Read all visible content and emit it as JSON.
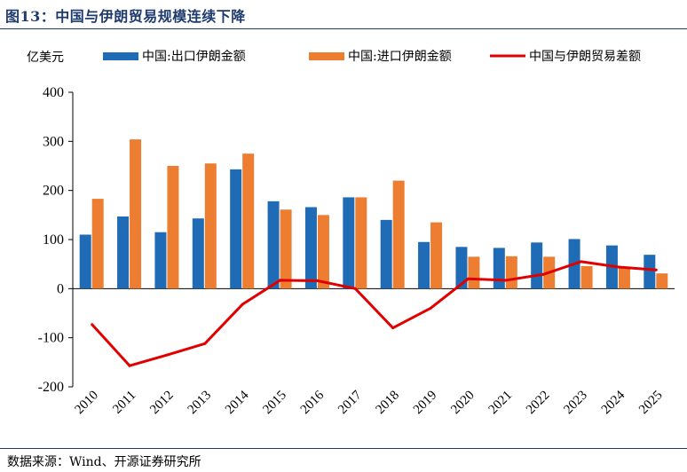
{
  "header": {
    "title": "图13：中国与伊朗贸易规模连续下降"
  },
  "footer": {
    "source": "数据来源：Wind、开源证券研究所"
  },
  "chart_data": {
    "type": "bar",
    "unit": "亿美元",
    "categories": [
      "2010",
      "2011",
      "2012",
      "2013",
      "2014",
      "2015",
      "2016",
      "2017",
      "2018",
      "2019",
      "2020",
      "2021",
      "2022",
      "2023",
      "2024",
      "2025"
    ],
    "series": [
      {
        "name": "中国:出口伊朗金额",
        "type": "bar",
        "color": "#1f6bb5",
        "values": [
          110,
          147,
          115,
          143,
          243,
          178,
          166,
          186,
          140,
          95,
          85,
          83,
          94,
          101,
          88,
          69
        ]
      },
      {
        "name": "中国:进口伊朗金额",
        "type": "bar",
        "color": "#ed7d31",
        "values": [
          183,
          304,
          250,
          255,
          275,
          161,
          150,
          186,
          220,
          135,
          65,
          66,
          65,
          46,
          44,
          31
        ]
      },
      {
        "name": "中国与伊朗贸易差额",
        "type": "line",
        "color": "#e00000",
        "values": [
          -73,
          -157,
          -135,
          -112,
          -32,
          17,
          16,
          0,
          -80,
          -40,
          20,
          17,
          29,
          55,
          44,
          38
        ]
      }
    ],
    "ylim": [
      -200,
      400
    ],
    "yticks": [
      -200,
      -100,
      0,
      100,
      200,
      300,
      400
    ],
    "legend_position": "top"
  }
}
